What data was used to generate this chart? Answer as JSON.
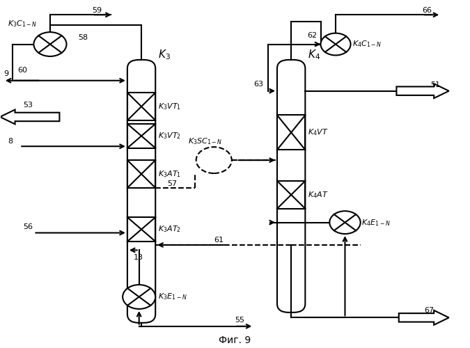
{
  "title": "Фиг. 9",
  "bg_color": "#ffffff",
  "line_color": "#000000"
}
